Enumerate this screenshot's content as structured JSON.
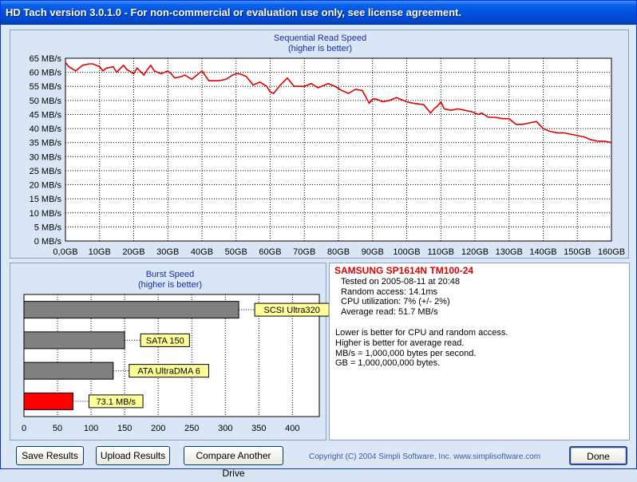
{
  "window": {
    "title": "HD Tach version 3.0.1.0  - For non-commercial or evaluation use only, see license agreement."
  },
  "sequential_chart": {
    "title_line1": "Sequential Read Speed",
    "title_line2": "(higher is better)"
  },
  "burst_chart": {
    "title_line1": "Burst Speed",
    "title_line2": "(higher is better)"
  },
  "chart_data": [
    {
      "type": "line",
      "title": "Sequential Read Speed",
      "subtitle": "(higher is better)",
      "xlabel": "",
      "ylabel": "",
      "x_ticks": [
        "0,0GB",
        "10GB",
        "20GB",
        "30GB",
        "40GB",
        "50GB",
        "60GB",
        "70GB",
        "80GB",
        "90GB",
        "100GB",
        "110GB",
        "120GB",
        "130GB",
        "140GB",
        "150GB",
        "160GB"
      ],
      "y_ticks": [
        "0 MB/s",
        "5 MB/s",
        "10 MB/s",
        "15 MB/s",
        "20 MB/s",
        "25 MB/s",
        "30 MB/s",
        "35 MB/s",
        "40 MB/s",
        "45 MB/s",
        "50 MB/s",
        "55 MB/s",
        "60 MB/s",
        "65 MB/s"
      ],
      "xlim": [
        0,
        160
      ],
      "ylim": [
        0,
        65
      ],
      "grid": true,
      "line_color": "#e00000",
      "series": [
        {
          "x": [
            0,
            1,
            3,
            5,
            7,
            8,
            10,
            11,
            12,
            14,
            15,
            17,
            18,
            20,
            21,
            23,
            24,
            25,
            26,
            28,
            30,
            31,
            32,
            34,
            35,
            37,
            38,
            40,
            42,
            45,
            47,
            49,
            50,
            51,
            53,
            55,
            57,
            59,
            60,
            61,
            63,
            65,
            67,
            70,
            71,
            72,
            74,
            76,
            77,
            79,
            81,
            83,
            85,
            87,
            89,
            90,
            91,
            92,
            93,
            95,
            97,
            98,
            99,
            100,
            102,
            105,
            107,
            108,
            109,
            110,
            111,
            113,
            115,
            117,
            119,
            121,
            122,
            124,
            126,
            128,
            130,
            132,
            134,
            136,
            138,
            140,
            142,
            144,
            146,
            148,
            150,
            152,
            154,
            156,
            158,
            160
          ],
          "y": [
            63.5,
            62,
            60.5,
            62.5,
            63,
            63,
            62,
            60.5,
            61.5,
            62,
            60,
            62.5,
            61,
            59.5,
            61.5,
            59,
            61,
            62.5,
            60.5,
            59.5,
            60.5,
            59.5,
            58,
            58.5,
            59,
            57.5,
            58.5,
            60.5,
            57,
            57,
            57.5,
            59,
            59.5,
            59.5,
            58.5,
            55.5,
            56.5,
            55,
            53,
            52.5,
            55.5,
            58,
            55,
            55,
            55.5,
            56,
            54.5,
            55.5,
            56,
            55,
            53.5,
            52.5,
            54,
            53.5,
            49,
            50.5,
            50.5,
            50,
            49.5,
            50,
            51,
            50.5,
            50,
            49.5,
            49,
            48.5,
            45.5,
            47,
            48,
            49.5,
            47,
            46.5,
            47,
            46.5,
            46,
            45,
            45.5,
            44,
            44,
            43.5,
            43.5,
            41.5,
            41.5,
            42,
            42.5,
            40,
            39,
            38.5,
            38.5,
            38,
            37.5,
            37,
            36,
            35.5,
            35.5,
            35
          ]
        }
      ]
    },
    {
      "type": "bar",
      "orientation": "horizontal",
      "title": "Burst Speed",
      "subtitle": "(higher is better)",
      "categories": [
        "SCSI Ultra320",
        "SATA 150",
        "ATA UltraDMA 6",
        "73.1 MB/s"
      ],
      "values": [
        320,
        150,
        133,
        73.1
      ],
      "colors": [
        "#808080",
        "#808080",
        "#808080",
        "#ff0000"
      ],
      "x_ticks": [
        "0",
        "50",
        "100",
        "150",
        "200",
        "250",
        "300",
        "350",
        "400"
      ],
      "xlim": [
        0,
        440
      ],
      "grid": true
    }
  ],
  "info": {
    "drive": "SAMSUNG SP1614N TM100-24",
    "tested": "Tested on 2005-08-11 at 20:48",
    "random_access": "Random access: 14.1ms",
    "cpu": "CPU utilization: 7% (+/- 2%)",
    "average_read": "Average read: 51.7 MB/s",
    "note1": "Lower is better for CPU and random access.",
    "note2": "Higher is better for average read.",
    "note3": "MB/s = 1,000,000 bytes per second.",
    "note4": "GB = 1,000,000,000 bytes."
  },
  "buttons": {
    "save": "Save Results",
    "upload": "Upload Results",
    "compare": "Compare Another Drive",
    "done": "Done"
  },
  "footer": {
    "copyright": "Copyright (C) 2004 Simpli Software, Inc. www.simplisoftware.com"
  }
}
